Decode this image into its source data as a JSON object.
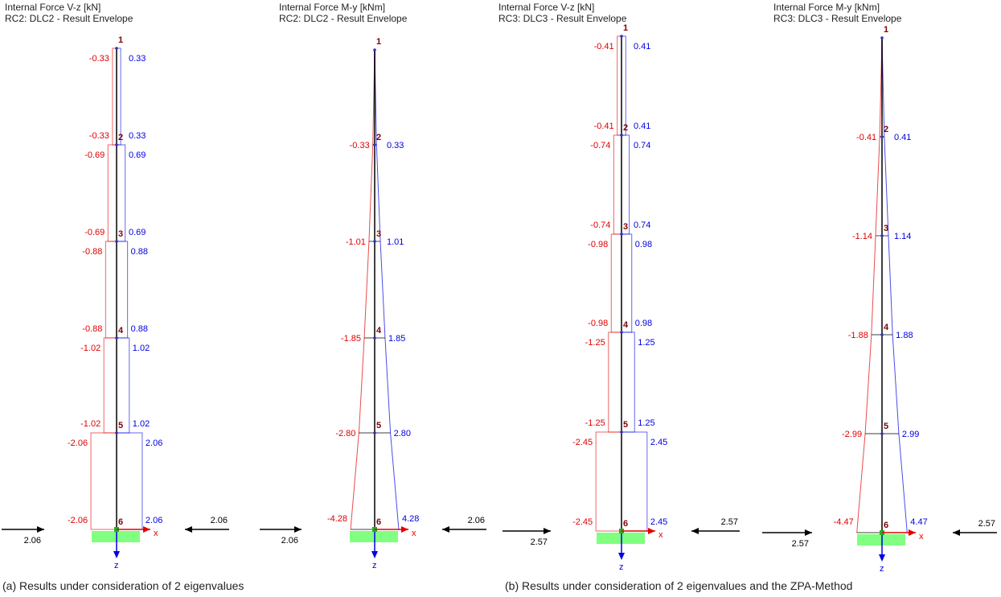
{
  "colors": {
    "negative": "#e00000",
    "positive": "#0000e0",
    "member": "#000000",
    "node_label": "#800000",
    "support": "#80ff80",
    "x_axis": "#e00000",
    "z_axis": "#0000e0"
  },
  "axis_labels": {
    "x": "x",
    "z": "z"
  },
  "panels": [
    {
      "title": "Internal Force V-z [kN]",
      "subtitle": "RC2: DLC2 - Result Envelope",
      "type": "shear",
      "nodes": [
        "1",
        "2",
        "3",
        "4",
        "5",
        "6"
      ],
      "segment_values": [
        0.33,
        0.69,
        0.88,
        1.02,
        2.06
      ],
      "reaction_left": "2.06",
      "reaction_right": "2.06"
    },
    {
      "title": "Internal Force M-y [kNm]",
      "subtitle": "RC2: DLC2 - Result Envelope",
      "type": "moment",
      "nodes": [
        "1",
        "2",
        "3",
        "4",
        "5",
        "6"
      ],
      "node_values": [
        0,
        0.33,
        1.01,
        1.85,
        2.8,
        4.28
      ],
      "reaction_left": "2.06",
      "reaction_right": "2.06"
    },
    {
      "title": "Internal Force V-z [kN]",
      "subtitle": "RC3: DLC3 - Result Envelope",
      "type": "shear",
      "nodes": [
        "1",
        "2",
        "3",
        "4",
        "5",
        "6"
      ],
      "segment_values": [
        0.41,
        0.74,
        0.98,
        1.25,
        2.45
      ],
      "reaction_left": "2.57",
      "reaction_right": "2.57"
    },
    {
      "title": "Internal Force M-y [kNm]",
      "subtitle": "RC3: DLC3 - Result Envelope",
      "type": "moment",
      "nodes": [
        "1",
        "2",
        "3",
        "4",
        "5",
        "6"
      ],
      "node_values": [
        0,
        0.41,
        1.14,
        1.88,
        2.99,
        4.47
      ],
      "reaction_left": "2.57",
      "reaction_right": "2.57"
    }
  ],
  "captions": {
    "a": "(a) Results under consideration of 2 eigenvalues",
    "b": "(b) Results under consideration of 2 eigenvalues and the ZPA-Method"
  }
}
